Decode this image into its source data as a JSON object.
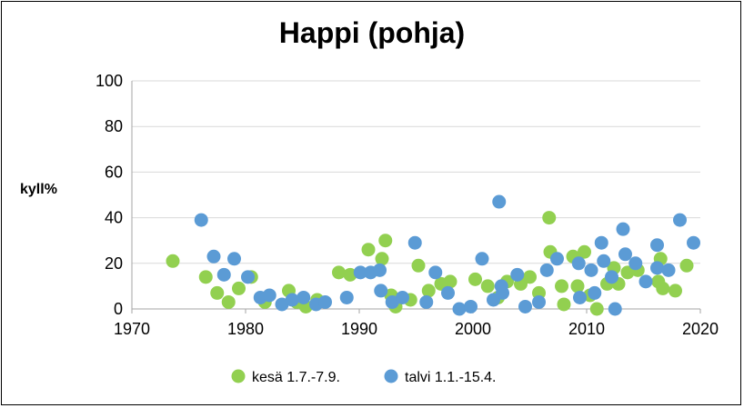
{
  "chart_data": {
    "type": "scatter",
    "title": "Happi (pohja)",
    "ylabel": "kyll%",
    "xlabel": "",
    "xlim": [
      1970,
      2020
    ],
    "ylim": [
      0,
      100
    ],
    "x_ticks": [
      "1970",
      "1980",
      "1990",
      "2000",
      "2010",
      "2020"
    ],
    "y_ticks": [
      "0",
      "20",
      "40",
      "60",
      "80",
      "100"
    ],
    "grid": "horizontal",
    "legend_position": "bottom",
    "series": [
      {
        "name": "kesä 1.7.-7.9.",
        "color": "#92d050",
        "points": [
          [
            1973.6,
            21
          ],
          [
            1976.5,
            14
          ],
          [
            1977.5,
            7
          ],
          [
            1978.5,
            3
          ],
          [
            1979.4,
            9
          ],
          [
            1980.5,
            14
          ],
          [
            1981.7,
            3
          ],
          [
            1983.8,
            8
          ],
          [
            1984.5,
            3
          ],
          [
            1985.3,
            1
          ],
          [
            1986.3,
            4
          ],
          [
            1988.2,
            16
          ],
          [
            1989.2,
            15
          ],
          [
            1990.8,
            26
          ],
          [
            1992.0,
            22
          ],
          [
            1992.3,
            30
          ],
          [
            1992.8,
            6
          ],
          [
            1993.2,
            1
          ],
          [
            1994.5,
            4
          ],
          [
            1995.2,
            19
          ],
          [
            1996.1,
            8
          ],
          [
            1997.2,
            11
          ],
          [
            1998.0,
            12
          ],
          [
            2000.2,
            13
          ],
          [
            2001.3,
            10
          ],
          [
            2002.2,
            5
          ],
          [
            2003.0,
            12
          ],
          [
            2004.2,
            11
          ],
          [
            2005.0,
            14
          ],
          [
            2005.8,
            7
          ],
          [
            2006.7,
            40
          ],
          [
            2006.8,
            25
          ],
          [
            2007.8,
            10
          ],
          [
            2008.0,
            2
          ],
          [
            2008.8,
            23
          ],
          [
            2009.2,
            10
          ],
          [
            2009.8,
            25
          ],
          [
            2010.3,
            6
          ],
          [
            2010.9,
            0
          ],
          [
            2011.8,
            11
          ],
          [
            2012.4,
            18
          ],
          [
            2012.8,
            11
          ],
          [
            2013.6,
            16
          ],
          [
            2014.5,
            17
          ],
          [
            2016.3,
            12
          ],
          [
            2016.5,
            22
          ],
          [
            2016.7,
            9
          ],
          [
            2017.8,
            8
          ],
          [
            2018.8,
            19
          ]
        ]
      },
      {
        "name": "talvi 1.1.-15.4.",
        "color": "#5b9bd5",
        "points": [
          [
            1976.1,
            39
          ],
          [
            1977.2,
            23
          ],
          [
            1978.1,
            15
          ],
          [
            1979.0,
            22
          ],
          [
            1980.2,
            14
          ],
          [
            1981.3,
            5
          ],
          [
            1982.1,
            6
          ],
          [
            1983.2,
            2
          ],
          [
            1984.1,
            4
          ],
          [
            1985.1,
            5
          ],
          [
            1986.2,
            2
          ],
          [
            1987.0,
            3
          ],
          [
            1988.9,
            5
          ],
          [
            1990.1,
            16
          ],
          [
            1991.0,
            16
          ],
          [
            1991.8,
            17
          ],
          [
            1991.9,
            8
          ],
          [
            1992.9,
            3
          ],
          [
            1993.8,
            5
          ],
          [
            1994.9,
            29
          ],
          [
            1995.9,
            3
          ],
          [
            1996.7,
            16
          ],
          [
            1997.8,
            7
          ],
          [
            1998.8,
            0
          ],
          [
            1999.8,
            1
          ],
          [
            2000.8,
            22
          ],
          [
            2001.8,
            4
          ],
          [
            2002.3,
            47
          ],
          [
            2002.5,
            10
          ],
          [
            2002.6,
            7
          ],
          [
            2003.9,
            15
          ],
          [
            2004.6,
            1
          ],
          [
            2005.8,
            3
          ],
          [
            2006.5,
            17
          ],
          [
            2007.4,
            22
          ],
          [
            2009.3,
            20
          ],
          [
            2009.4,
            5
          ],
          [
            2010.4,
            17
          ],
          [
            2010.7,
            7
          ],
          [
            2011.3,
            29
          ],
          [
            2011.5,
            21
          ],
          [
            2012.2,
            14
          ],
          [
            2012.5,
            0
          ],
          [
            2013.2,
            35
          ],
          [
            2013.4,
            24
          ],
          [
            2014.3,
            20
          ],
          [
            2015.2,
            12
          ],
          [
            2016.2,
            28
          ],
          [
            2016.2,
            18
          ],
          [
            2017.2,
            17
          ],
          [
            2018.2,
            39
          ],
          [
            2019.4,
            29
          ]
        ]
      }
    ]
  }
}
